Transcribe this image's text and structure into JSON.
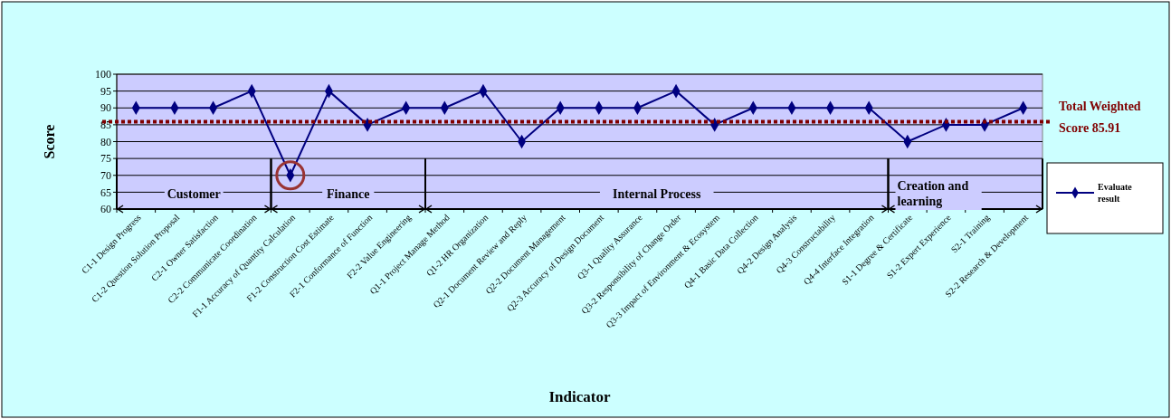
{
  "chart_data": {
    "type": "line",
    "xlabel": "Indicator",
    "ylabel": "Score",
    "categories": [
      "C1-1 Design Progress",
      "C1-2 Question Solution Proposal",
      "C2-1 Owner Satisfaction",
      "C2-2 Communicate Coordination",
      "F1-1 Accuracy of Quantity Calculation",
      "F1-2 Construction Cost Estimate",
      "F2-1 Conformance of Function",
      "F2-2 Value Engineering",
      "Q1-1 Project Manage Method",
      "Q1-2 HR Organization",
      "Q2-1 Document Review and Reply",
      "Q2-2 Document Management",
      "Q2-3 Accuracy of  Design Document",
      "Q3-1 Quality Assurance",
      "Q3-2 Responsibility of Change Order",
      "Q3-3 Impact of Environment & Ecosystem",
      "Q4-1 Basic Data Collection",
      "Q4-2 Design Analysis",
      "Q4-3 Constructability",
      "Q4-4 Interface Integration",
      "S1-1 Degree & Certificate",
      "S1-2 Expert Experience",
      "S2-1 Training",
      "S2-2 Research & Development"
    ],
    "series": [
      {
        "name": "Evaluate result",
        "color": "#000080",
        "values": [
          90,
          90,
          90,
          95,
          70,
          95,
          85,
          90,
          90,
          95,
          80,
          90,
          90,
          90,
          95,
          85,
          90,
          90,
          90,
          90,
          80,
          85,
          85,
          90
        ]
      }
    ],
    "ylim": [
      60,
      100
    ],
    "yticks": [
      60,
      65,
      70,
      75,
      80,
      85,
      90,
      95,
      100
    ],
    "grid": "y",
    "marker": "diamond",
    "line_style": "solid",
    "legend": "right",
    "ref_lines": [
      {
        "axis": "y",
        "value": 85.91,
        "label": "Total Weighted Score 85.91",
        "color": "#800000",
        "line_style": "dotted"
      }
    ],
    "annotations": [
      "Customer",
      "Finance",
      "Internal Process",
      "Creation and learning"
    ]
  }
}
